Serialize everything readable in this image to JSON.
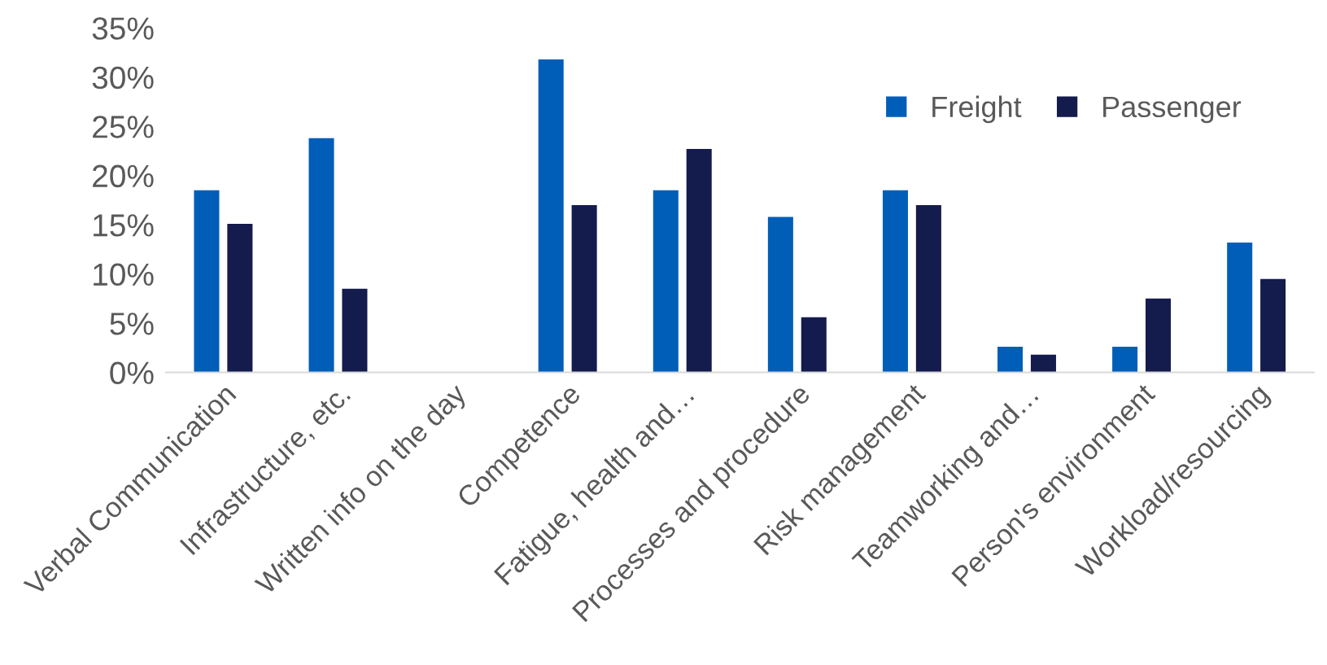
{
  "chart_data": {
    "type": "bar",
    "categories": [
      "Verbal Communication",
      "Infrastructure, etc.",
      "Written info on the day",
      "Competence",
      "Fatigue, health and…",
      "Processes and procedure",
      "Risk management",
      "Teamworking and…",
      "Person's environment",
      "Workload/resourcing"
    ],
    "series": [
      {
        "name": "Freight",
        "color": "#005eb8",
        "values": [
          18.5,
          23.8,
          0,
          31.8,
          18.5,
          15.8,
          18.5,
          2.6,
          2.6,
          13.2
        ]
      },
      {
        "name": "Passenger",
        "color": "#141b4d",
        "values": [
          15.1,
          8.5,
          0,
          17.0,
          22.7,
          5.6,
          17.0,
          1.8,
          7.5,
          9.5
        ]
      }
    ],
    "ylim": [
      0,
      35
    ],
    "yticks": [
      {
        "value": 0,
        "label": "0%"
      },
      {
        "value": 5,
        "label": "5%"
      },
      {
        "value": 10,
        "label": "10%"
      },
      {
        "value": 15,
        "label": "15%"
      },
      {
        "value": 20,
        "label": "20%"
      },
      {
        "value": 25,
        "label": "25%"
      },
      {
        "value": 30,
        "label": "30%"
      },
      {
        "value": 35,
        "label": "35%"
      }
    ],
    "grid": false,
    "legend": "top right"
  }
}
